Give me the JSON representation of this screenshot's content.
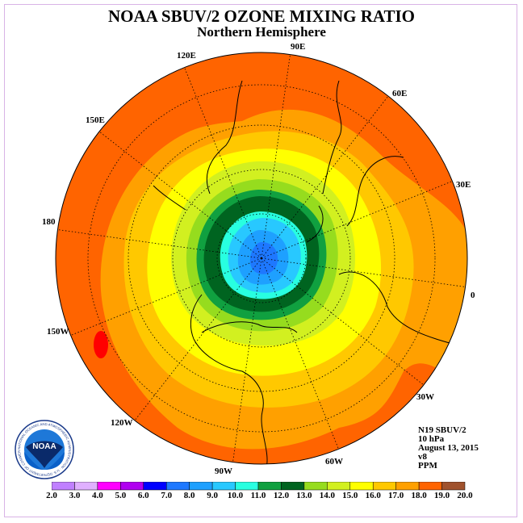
{
  "title": "NOAA SBUV/2 OZONE MIXING RATIO",
  "subtitle": "Northern Hemisphere",
  "longitude_labels": [
    "90E",
    "60E",
    "30E",
    "0",
    "30W",
    "60W",
    "90W",
    "120W",
    "150W",
    "180",
    "150E",
    "120E"
  ],
  "info": {
    "satellite": "N19 SBUV/2",
    "level": "10 hPa",
    "date": "August 13, 2015",
    "version": "v8",
    "units": "PPM"
  },
  "colorbar": {
    "labels": [
      "2.0",
      "3.0",
      "4.0",
      "5.0",
      "6.0",
      "7.0",
      "8.0",
      "9.0",
      "10.0",
      "11.0",
      "12.0",
      "13.0",
      "14.0",
      "15.0",
      "16.0",
      "17.0",
      "18.0",
      "19.0",
      "20.0"
    ],
    "colors": [
      "#c080ff",
      "#e0b0ff",
      "#ff00ff",
      "#b000f0",
      "#0000ff",
      "#1e78ff",
      "#1ea0ff",
      "#28c8ff",
      "#28ffe0",
      "#10a040",
      "#006420",
      "#96dc1e",
      "#d2f020",
      "#ffff00",
      "#ffc800",
      "#ffa000",
      "#ff6400",
      "#ff0000",
      "#a0522d"
    ]
  },
  "logo_text": "NOAA",
  "logo_ring_text": "NATIONAL OCEANIC AND ATMOSPHERIC ADMINISTRATION · U.S. DEPARTMENT OF COMMERCE",
  "colors": {
    "outer": "#ff6400",
    "orange": "#ffa000",
    "gold": "#ffc800",
    "yellow": "#ffff00",
    "lime": "#d2f020",
    "green": "#96dc1e",
    "darkgreen": "#006420",
    "midgreen": "#10a040",
    "cyan": "#28ffe0",
    "sky": "#28c8ff",
    "blue": "#1ea0ff",
    "deepblue": "#1e78ff",
    "red": "#ff0000"
  }
}
